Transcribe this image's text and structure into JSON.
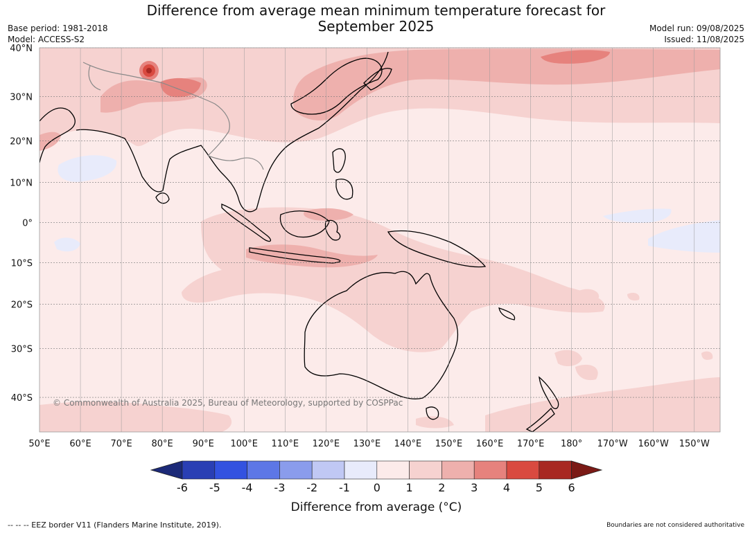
{
  "title_line1": "Difference from average mean minimum temperature forecast for",
  "title_line2": "September 2025",
  "base_period": "Base period: 1981-2018",
  "model": "Model: ACCESS-S2",
  "model_run": "Model run: 09/08/2025",
  "issued": "Issued: 11/08/2025",
  "copyright": "© Commonwealth of Australia 2025, Bureau of Meteorology, supported by COSPPac",
  "latitude_labels": [
    "40°N",
    "30°N",
    "20°N",
    "10°N",
    "0°",
    "10°S",
    "20°S",
    "30°S",
    "40°S"
  ],
  "longitude_labels": [
    "50°E",
    "60°E",
    "70°E",
    "80°E",
    "90°E",
    "100°E",
    "110°E",
    "120°E",
    "130°E",
    "140°E",
    "150°E",
    "160°E",
    "170°E",
    "180°",
    "170°W",
    "160°W",
    "150°W"
  ],
  "colorbar": {
    "title": "Difference from average (°C)",
    "tick_labels": [
      "-6",
      "-5",
      "-4",
      "-3",
      "-2",
      "-1",
      "0",
      "1",
      "2",
      "3",
      "4",
      "5",
      "6"
    ],
    "colors": [
      "#1c2a78",
      "#2a3fb4",
      "#3352e0",
      "#5d77e6",
      "#8a9cec",
      "#c0c8f4",
      "#e8ebfb",
      "#fcebea",
      "#f6d2d0",
      "#eeb0ad",
      "#e6827d",
      "#d94a40",
      "#a82822",
      "#7b1a16"
    ]
  },
  "footer_left": "--  --  -- EEZ border V11 (Flanders Marine Institute, 2019).",
  "footer_right": "Boundaries are not considered authoritative"
}
